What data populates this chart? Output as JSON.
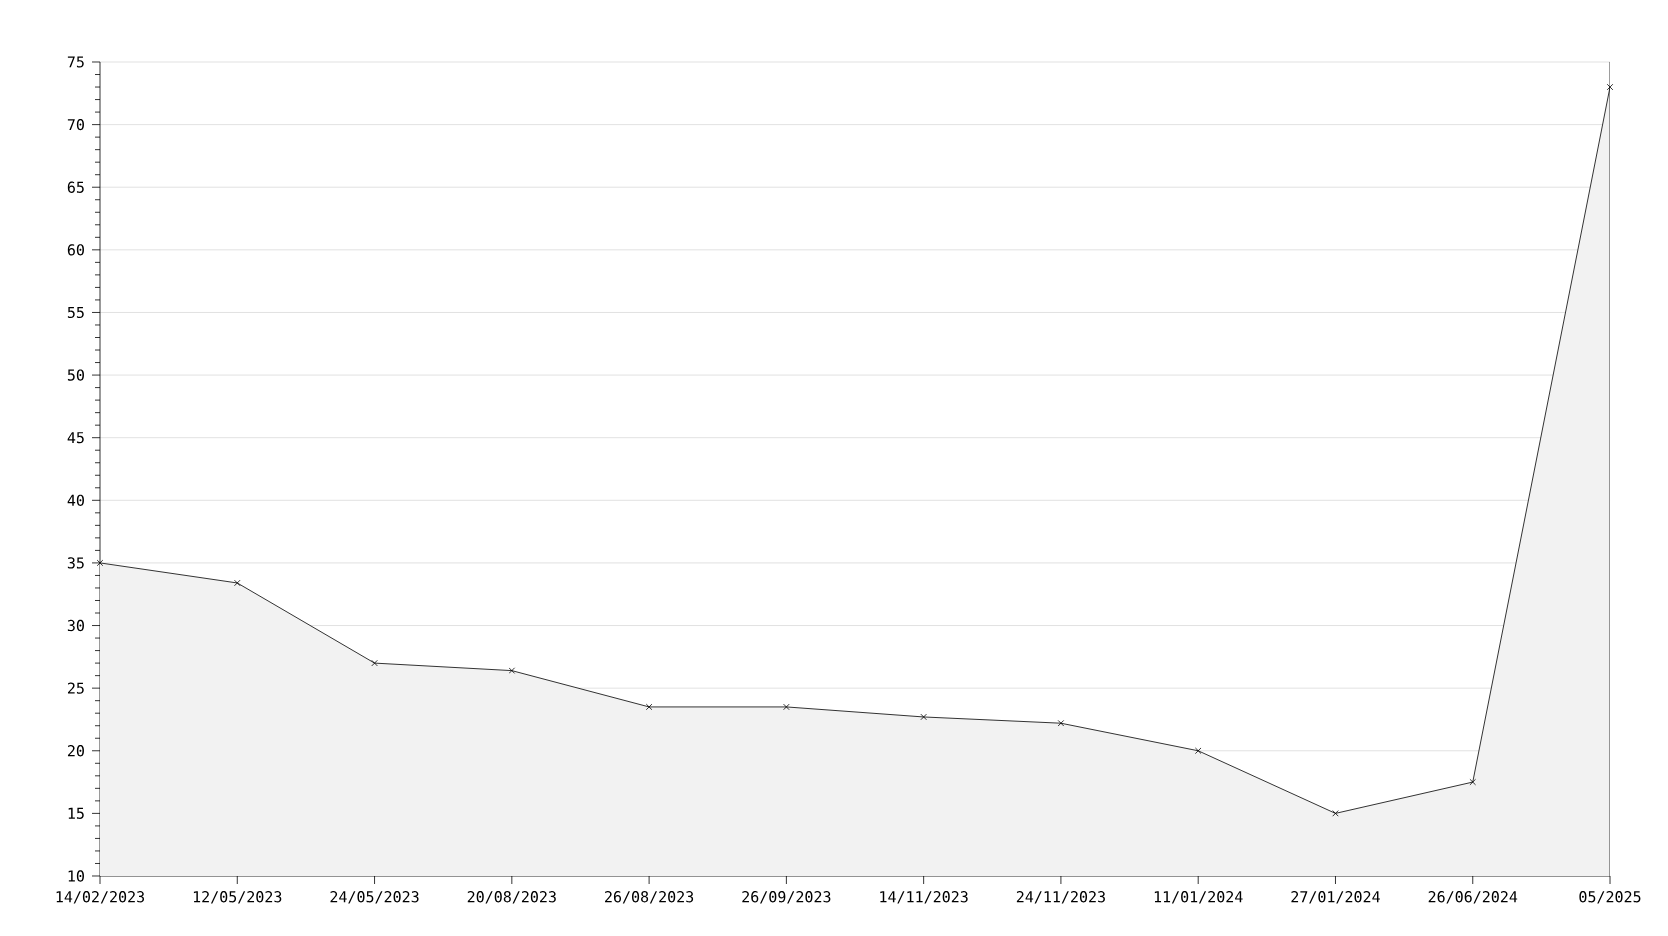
{
  "chart_data": {
    "type": "area",
    "categories": [
      "14/02/2023",
      "12/05/2023",
      "24/05/2023",
      "20/08/2023",
      "26/08/2023",
      "26/09/2023",
      "14/11/2023",
      "24/11/2023",
      "11/01/2024",
      "27/01/2024",
      "26/06/2024",
      "05/2025"
    ],
    "series": [
      {
        "color": "#000000",
        "values": [
          35,
          33.4,
          27,
          26.4,
          23.5,
          23.5,
          22.7,
          22.2,
          20,
          15,
          17.5,
          73
        ]
      }
    ],
    "ylim": [
      10,
      75
    ],
    "yticks": [
      10,
      15,
      20,
      25,
      30,
      35,
      40,
      45,
      50,
      55,
      60,
      65,
      70,
      75
    ],
    "grid": "y",
    "marker": "cross",
    "line_style": "solid"
  }
}
